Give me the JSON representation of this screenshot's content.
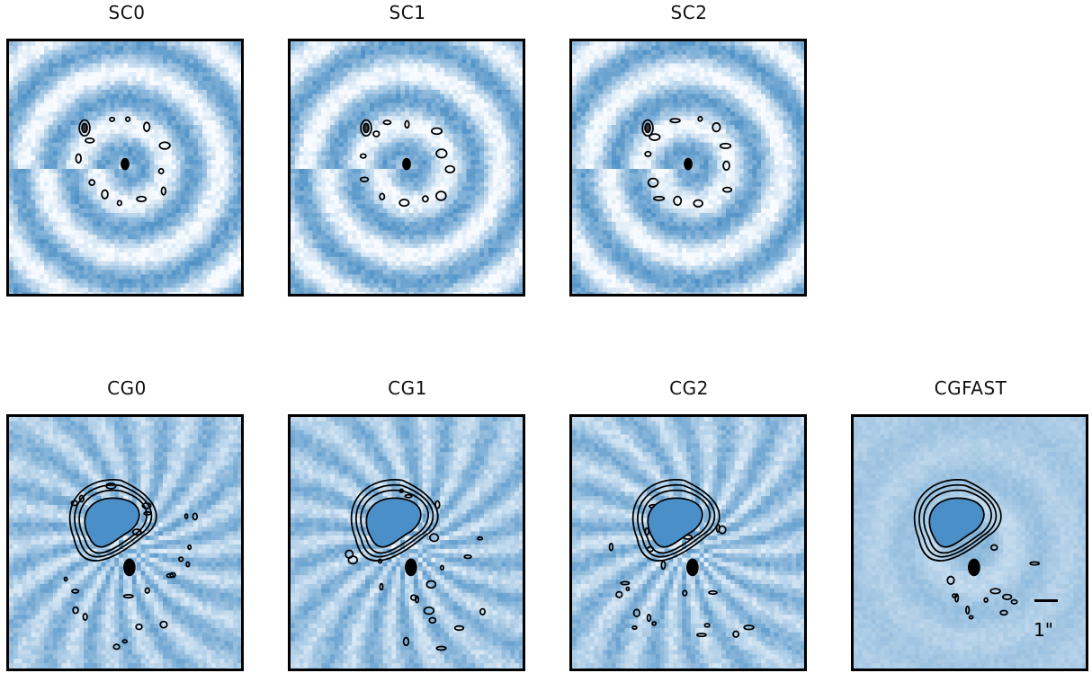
{
  "chart_data": [
    {
      "type": "heatmap",
      "title": "SC0",
      "group": "SC",
      "contours": true
    },
    {
      "type": "heatmap",
      "title": "SC1",
      "group": "SC",
      "contours": true
    },
    {
      "type": "heatmap",
      "title": "SC2",
      "group": "SC",
      "contours": true
    },
    {
      "type": "heatmap",
      "title": "CG0",
      "group": "CG",
      "contours": true
    },
    {
      "type": "heatmap",
      "title": "CG1",
      "group": "CG",
      "contours": true
    },
    {
      "type": "heatmap",
      "title": "CG2",
      "group": "CG",
      "contours": true
    },
    {
      "type": "heatmap",
      "title": "CGFAST",
      "group": "CG",
      "contours": true
    }
  ],
  "scalebar": {
    "label": "1\""
  },
  "colors": {
    "colormap_low": "#f7fbff",
    "colormap_high": "#2b7bba",
    "contour": "#000000",
    "frame": "#000000"
  }
}
